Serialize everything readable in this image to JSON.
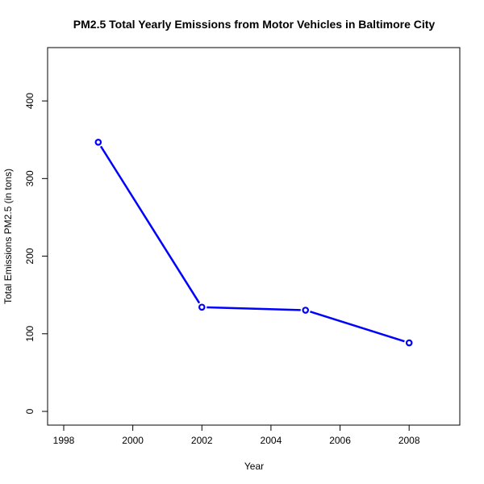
{
  "chart_data": {
    "type": "line",
    "title": "PM2.5 Total Yearly Emissions from Motor Vehicles in Baltimore City",
    "xlabel": "Year",
    "ylabel": "Total Emissions PM2.5 (in tons)",
    "x": [
      1999,
      2002,
      2005,
      2008
    ],
    "series": [
      {
        "values": [
          346.8,
          134.3,
          130.4,
          88.3
        ]
      }
    ],
    "xlim": [
      1998,
      2009
    ],
    "ylim": [
      0,
      450
    ],
    "x_ticks": [
      "1998",
      "2000",
      "2002",
      "2004",
      "2006",
      "2008"
    ],
    "y_ticks": [
      "0",
      "100",
      "200",
      "300",
      "400"
    ],
    "grid": false,
    "legend": "none",
    "line_color": "#0000ff",
    "markers": "open-circle"
  }
}
